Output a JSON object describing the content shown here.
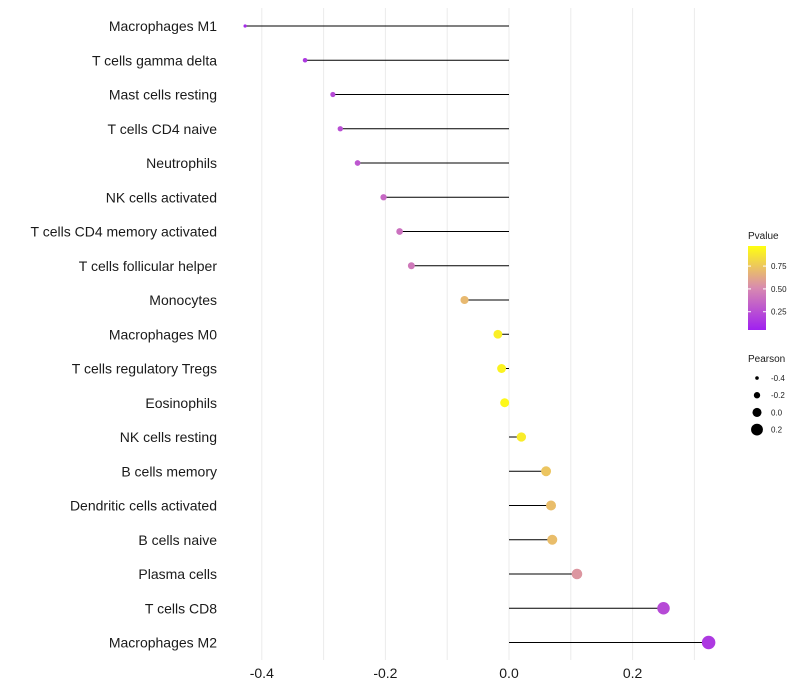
{
  "chart_data": {
    "type": "lollipop",
    "x_ticks": [
      "-0.4",
      "-0.2",
      "0.0",
      "0.2"
    ],
    "x_tick_values": [
      -0.4,
      -0.2,
      0.0,
      0.2
    ],
    "xlim": [
      -0.44,
      0.34
    ],
    "rows": [
      {
        "label": "Macrophages M1",
        "pearson": -0.427,
        "pvalue": 0.05
      },
      {
        "label": "T cells gamma delta",
        "pearson": -0.33,
        "pvalue": 0.12
      },
      {
        "label": "Mast cells resting",
        "pearson": -0.285,
        "pvalue": 0.2
      },
      {
        "label": "T cells CD4 naive",
        "pearson": -0.273,
        "pvalue": 0.22
      },
      {
        "label": "Neutrophils",
        "pearson": -0.245,
        "pvalue": 0.26
      },
      {
        "label": "NK cells activated",
        "pearson": -0.203,
        "pvalue": 0.34
      },
      {
        "label": "T cells CD4 memory activated",
        "pearson": -0.177,
        "pvalue": 0.38
      },
      {
        "label": "T cells follicular helper",
        "pearson": -0.158,
        "pvalue": 0.42
      },
      {
        "label": "Monocytes",
        "pearson": -0.072,
        "pvalue": 0.7
      },
      {
        "label": "Macrophages M0",
        "pearson": -0.018,
        "pvalue": 0.93
      },
      {
        "label": "T cells regulatory  Tregs ",
        "pearson": -0.012,
        "pvalue": 0.95
      },
      {
        "label": "Eosinophils",
        "pearson": -0.007,
        "pvalue": 0.97
      },
      {
        "label": "NK cells resting",
        "pearson": 0.02,
        "pvalue": 0.92
      },
      {
        "label": "B cells memory",
        "pearson": 0.06,
        "pvalue": 0.75
      },
      {
        "label": "Dendritic cells activated",
        "pearson": 0.068,
        "pvalue": 0.72
      },
      {
        "label": "B cells naive",
        "pearson": 0.07,
        "pvalue": 0.72
      },
      {
        "label": "Plasma cells",
        "pearson": 0.11,
        "pvalue": 0.55
      },
      {
        "label": "T cells CD8",
        "pearson": 0.25,
        "pvalue": 0.2
      },
      {
        "label": "Macrophages M2",
        "pearson": 0.323,
        "pvalue": 0.12
      }
    ],
    "legend_pvalue": {
      "title": "Pvalue",
      "labels": [
        "0.75",
        "0.50",
        "0.25"
      ],
      "values": [
        0.75,
        0.5,
        0.25
      ],
      "color_low": "#a020f0",
      "color_mid": "#d88ab0",
      "color_high": "#ffff10"
    },
    "legend_pearson": {
      "title": "Pearson",
      "labels": [
        "-0.4",
        "-0.2",
        "0.0",
        "0.2"
      ],
      "values": [
        -0.4,
        -0.2,
        0.0,
        0.2
      ]
    },
    "colors": {
      "segment": "#000000",
      "gridline": "#ebebeb",
      "legend_dot": "#000000"
    }
  }
}
